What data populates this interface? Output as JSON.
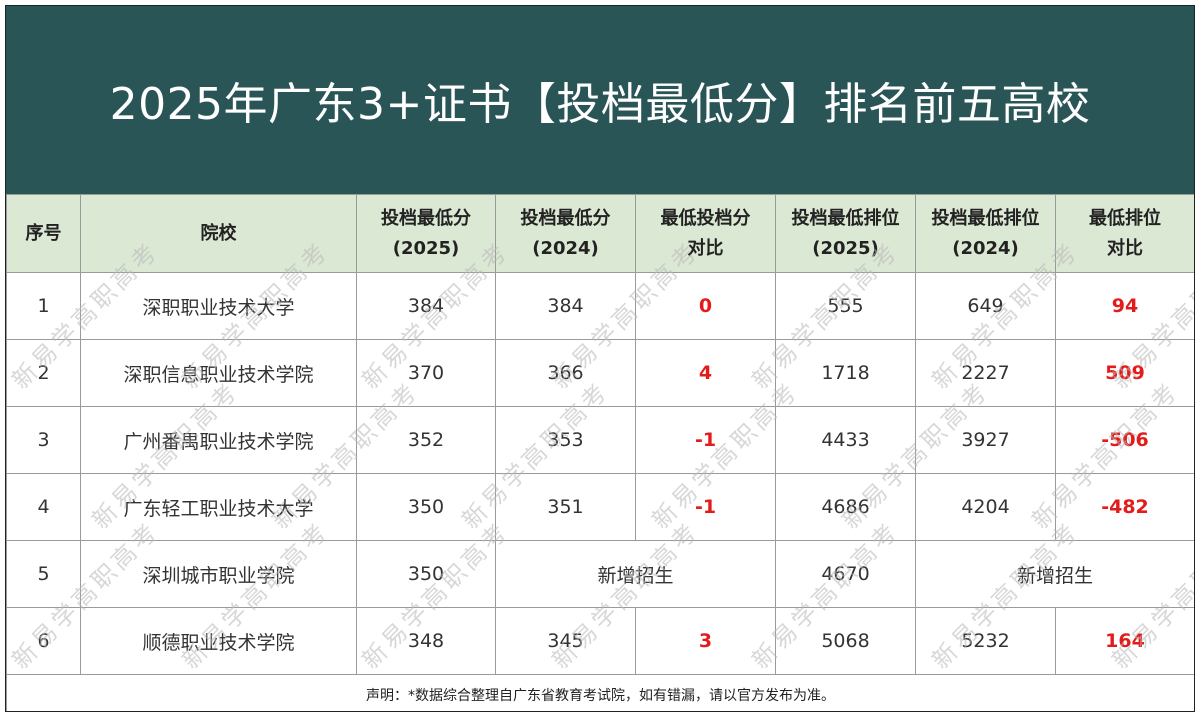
{
  "title": "2025年广东3+证书【投档最低分】排名前五高校",
  "headers": [
    [
      "序号"
    ],
    [
      "院校"
    ],
    [
      "投档最低分",
      "(2025)"
    ],
    [
      "投档最低分",
      "(2024)"
    ],
    [
      "最低投档分",
      "对比"
    ],
    [
      "投档最低排位",
      "(2025)"
    ],
    [
      "投档最低排位",
      "(2024)"
    ],
    [
      "最低排位",
      "对比"
    ]
  ],
  "rows": [
    {
      "no": "1",
      "school": "深职职业技术大学",
      "score2025": "384",
      "score2024": "384",
      "score_diff": "0",
      "rank2025": "555",
      "rank2024": "649",
      "rank_diff": "94"
    },
    {
      "no": "2",
      "school": "深职信息职业技术学院",
      "score2025": "370",
      "score2024": "366",
      "score_diff": "4",
      "rank2025": "1718",
      "rank2024": "2227",
      "rank_diff": "509"
    },
    {
      "no": "3",
      "school": "广州番禺职业技术学院",
      "score2025": "352",
      "score2024": "353",
      "score_diff": "-1",
      "rank2025": "4433",
      "rank2024": "3927",
      "rank_diff": "-506"
    },
    {
      "no": "4",
      "school": "广东轻工职业技术大学",
      "score2025": "350",
      "score2024": "351",
      "score_diff": "-1",
      "rank2025": "4686",
      "rank2024": "4204",
      "rank_diff": "-482"
    },
    {
      "no": "5",
      "school": "深圳城市职业学院",
      "score2025": "350",
      "new_label_score": "新增招生",
      "rank2025": "4670",
      "new_label_rank": "新增招生"
    },
    {
      "no": "6",
      "school": "顺德职业技术学院",
      "score2025": "348",
      "score2024": "345",
      "score_diff": "3",
      "rank2025": "5068",
      "rank2024": "5232",
      "rank_diff": "164"
    }
  ],
  "footnote": "声明：*数据综合整理自广东省教育考试院，如有错漏，请以官方发布为准。",
  "watermark": "新易学高职高考",
  "colors": {
    "banner": "#2a5556",
    "header_bg": "#dbe8d3",
    "diff_red": "#e31b1b"
  }
}
